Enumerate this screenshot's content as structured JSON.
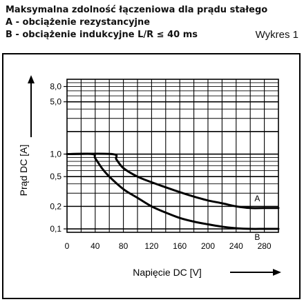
{
  "header": {
    "title": "Maksymalna zdolność łączeniowa dla prądu stałego",
    "line_a": "A - obciążenie rezystancyjne",
    "line_b": "B - obciążenie indukcyjne L/R ≤ 40 ms",
    "chart_note": "Wykres 1"
  },
  "chart_data": {
    "type": "line",
    "xlabel": "Napięcie DC [V]",
    "ylabel": "Prąd DC [A]",
    "xlim": [
      0,
      300
    ],
    "ylim": [
      0.09,
      10
    ],
    "yscale": "log",
    "grid": true,
    "x_ticks": [
      0,
      40,
      80,
      120,
      160,
      200,
      240,
      280
    ],
    "x_tick_labels": [
      "0",
      "40",
      "80",
      "120",
      "160",
      "200",
      "240",
      "280"
    ],
    "y_ticks": [
      0.1,
      0.2,
      0.5,
      1.0,
      5.0,
      8.0
    ],
    "y_tick_labels": [
      "0,1",
      "0,2",
      "0,5",
      "1,0",
      "5,0",
      "8,0"
    ],
    "series": [
      {
        "name": "A",
        "x": [
          0,
          64,
          70,
          80,
          100,
          120,
          140,
          160,
          180,
          200,
          220,
          240,
          260,
          280,
          300
        ],
        "y": [
          1.0,
          1.0,
          0.85,
          0.65,
          0.5,
          0.42,
          0.36,
          0.31,
          0.27,
          0.24,
          0.22,
          0.2,
          0.19,
          0.19,
          0.19
        ]
      },
      {
        "name": "B",
        "x": [
          0,
          36,
          40,
          50,
          60,
          80,
          100,
          120,
          140,
          160,
          180,
          200,
          220,
          240,
          260,
          280,
          300
        ],
        "y": [
          1.0,
          1.0,
          0.88,
          0.64,
          0.5,
          0.34,
          0.26,
          0.2,
          0.165,
          0.14,
          0.125,
          0.115,
          0.107,
          0.102,
          0.1,
          0.1,
          0.1
        ]
      }
    ]
  }
}
